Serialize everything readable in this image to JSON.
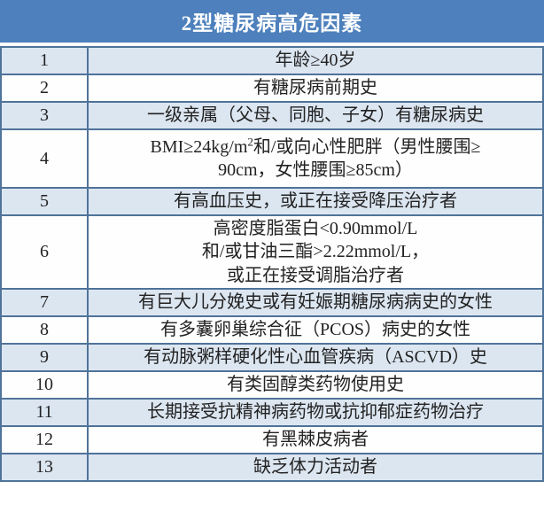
{
  "header": {
    "title": "2型糖尿病高危因素"
  },
  "colors": {
    "header_bg": "#4d80bc",
    "header_text": "#ffffff",
    "stripe_row_bg": "#dce6f1",
    "plain_row_bg": "#fefefe",
    "grid_border": "#4f7399",
    "body_text": "#222222"
  },
  "table": {
    "rows": [
      {
        "num": "1",
        "text": "年龄≥40岁"
      },
      {
        "num": "2",
        "text": "有糖尿病前期史"
      },
      {
        "num": "3",
        "text": "一级亲属（父母、同胞、子女）有糖尿病史"
      },
      {
        "num": "4",
        "line1_pre": "BMI≥24kg/m",
        "sup": "2",
        "line1_post": "和/或向心性肥胖（男性腰围≥",
        "line2": "90cm，女性腰围≥85cm）"
      },
      {
        "num": "5",
        "text": "有高血压史，或正在接受降压治疗者"
      },
      {
        "num": "6",
        "line1": "高密度脂蛋白<0.90mmol/L",
        "line2": "和/或甘油三酯>2.22mmol/L，",
        "line3": "或正在接受调脂治疗者"
      },
      {
        "num": "7",
        "text": "有巨大儿分娩史或有妊娠期糖尿病病史的女性"
      },
      {
        "num": "8",
        "text": "有多囊卵巢综合征（PCOS）病史的女性"
      },
      {
        "num": "9",
        "text": "有动脉粥样硬化性心血管疾病（ASCVD）史"
      },
      {
        "num": "10",
        "text": "有类固醇类药物使用史"
      },
      {
        "num": "11",
        "text": "长期接受抗精神病药物或抗抑郁症药物治疗"
      },
      {
        "num": "12",
        "text": "有黑棘皮病者"
      },
      {
        "num": "13",
        "text": "缺乏体力活动者"
      }
    ]
  },
  "chart_data": {
    "type": "table",
    "title": "2型糖尿病高危因素",
    "rows": [
      [
        1,
        "年龄≥40岁"
      ],
      [
        2,
        "有糖尿病前期史"
      ],
      [
        3,
        "一级亲属（父母、同胞、子女）有糖尿病史"
      ],
      [
        4,
        "BMI≥24kg/m²和/或向心性肥胖（男性腰围≥90cm，女性腰围≥85cm）"
      ],
      [
        5,
        "有高血压史，或正在接受降压治疗者"
      ],
      [
        6,
        "高密度脂蛋白<0.90mmol/L和/或甘油三酯>2.22mmol/L，或正在接受调脂治疗者"
      ],
      [
        7,
        "有巨大儿分娩史或有妊娠期糖尿病病史的女性"
      ],
      [
        8,
        "有多囊卵巢综合征（PCOS）病史的女性"
      ],
      [
        9,
        "有动脉粥样硬化性心血管疾病（ASCVD）史"
      ],
      [
        10,
        "有类固醇类药物使用史"
      ],
      [
        11,
        "长期接受抗精神病药物或抗抑郁症药物治疗"
      ],
      [
        12,
        "有黑棘皮病者"
      ],
      [
        13,
        "缺乏体力活动者"
      ]
    ],
    "layout": {
      "striped": true,
      "header_merged": true,
      "legend": "none",
      "grid": true
    }
  }
}
